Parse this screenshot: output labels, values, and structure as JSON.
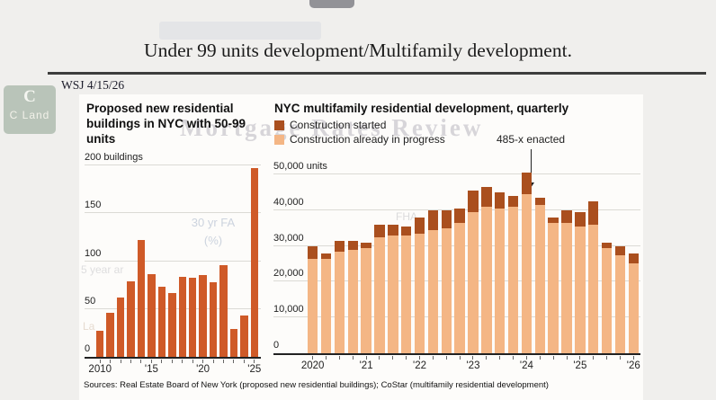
{
  "page": {
    "title": "Under 99 units development/Multifamily development.",
    "byline": "WSJ 4/15/26",
    "sources": "Sources: Real Estate Board of New York (proposed new residential buildings); CoStar (multifamily residential development)"
  },
  "watermarks": {
    "logo_letter": "C",
    "logo_text": "C Land",
    "headline_ghost": "Mortgage Rates Review",
    "fragment_rate": "30 yr FA (%)",
    "fragment_fha": "FHA",
    "fragment_arm": "5 year ar",
    "fragment_la": "La"
  },
  "colors": {
    "left_bar": "#cf5a28",
    "construction_started": "#aa4f1e",
    "construction_in_progress": "#f4b685",
    "gridline": "#dbdad5",
    "axis": "#222222",
    "card_bg": "#fdfcfa",
    "page_bg": "#f0efed"
  },
  "chart_data": [
    {
      "type": "bar",
      "title": "Proposed new residential buildings in NYC with 50-99 units",
      "categories": [
        "2010",
        "2011",
        "2012",
        "2013",
        "2014",
        "2015",
        "2016",
        "2017",
        "2018",
        "2019",
        "2020",
        "2021",
        "2022",
        "2023",
        "2024",
        "2025"
      ],
      "values": [
        27,
        46,
        62,
        79,
        122,
        86,
        73,
        67,
        84,
        83,
        85,
        78,
        96,
        29,
        43,
        197
      ],
      "ylabel": "buildings",
      "ylim": [
        0,
        200
      ],
      "yticks": [
        0,
        50,
        100,
        150,
        200
      ],
      "ytick_labels": [
        "0",
        "50",
        "100",
        "150",
        "200 buildings"
      ],
      "xtick_labels": [
        "2010",
        "",
        "",
        "",
        "",
        "'15",
        "",
        "",
        "",
        "",
        "'20",
        "",
        "",
        "",
        "",
        "'25"
      ],
      "grid": true,
      "legend_position": "none"
    },
    {
      "type": "stacked-bar",
      "title": "NYC multifamily residential development, quarterly",
      "legend": [
        {
          "label": "Construction started",
          "color": "#aa4f1e"
        },
        {
          "label": "Construction already in progress",
          "color": "#f4b685"
        }
      ],
      "annotation": {
        "text": "485-x enacted",
        "target": "2024 Q2"
      },
      "categories": [
        "2020 Q1",
        "2020 Q2",
        "2020 Q3",
        "2020 Q4",
        "2021 Q1",
        "2021 Q2",
        "2021 Q3",
        "2021 Q4",
        "2022 Q1",
        "2022 Q2",
        "2022 Q3",
        "2022 Q4",
        "2023 Q1",
        "2023 Q2",
        "2023 Q3",
        "2023 Q4",
        "2024 Q1",
        "2024 Q2",
        "2024 Q3",
        "2024 Q4",
        "2025 Q1",
        "2025 Q2",
        "2025 Q3",
        "2025 Q4",
        "2026 Q1"
      ],
      "series": [
        {
          "name": "Construction started",
          "values": [
            3500,
            1500,
            3000,
            2500,
            1500,
            3500,
            3000,
            2500,
            4500,
            5500,
            5000,
            4000,
            6000,
            5500,
            4500,
            3000,
            6000,
            2000,
            1500,
            3500,
            4000,
            6500,
            1500,
            2500,
            3000
          ]
        },
        {
          "name": "Construction already in progress",
          "values": [
            26500,
            26500,
            28500,
            29000,
            29500,
            32500,
            33000,
            33000,
            33500,
            34500,
            35000,
            36500,
            39500,
            41000,
            40500,
            41000,
            44500,
            41500,
            36500,
            36500,
            35500,
            36000,
            29500,
            27500,
            25000
          ]
        }
      ],
      "ylabel": "units",
      "ylim": [
        0,
        52000
      ],
      "yticks": [
        0,
        10000,
        20000,
        30000,
        40000,
        50000
      ],
      "ytick_labels": [
        "0",
        "10,000",
        "20,000",
        "30,000",
        "40,000",
        "50,000 units"
      ],
      "xtick_labels": [
        "2020",
        "",
        "",
        "",
        "'21",
        "",
        "",
        "",
        "'22",
        "",
        "",
        "",
        "'23",
        "",
        "",
        "",
        "'24",
        "",
        "",
        "",
        "'25",
        "",
        "",
        "",
        "'26"
      ],
      "grid": true,
      "legend_position": "top-left"
    }
  ]
}
